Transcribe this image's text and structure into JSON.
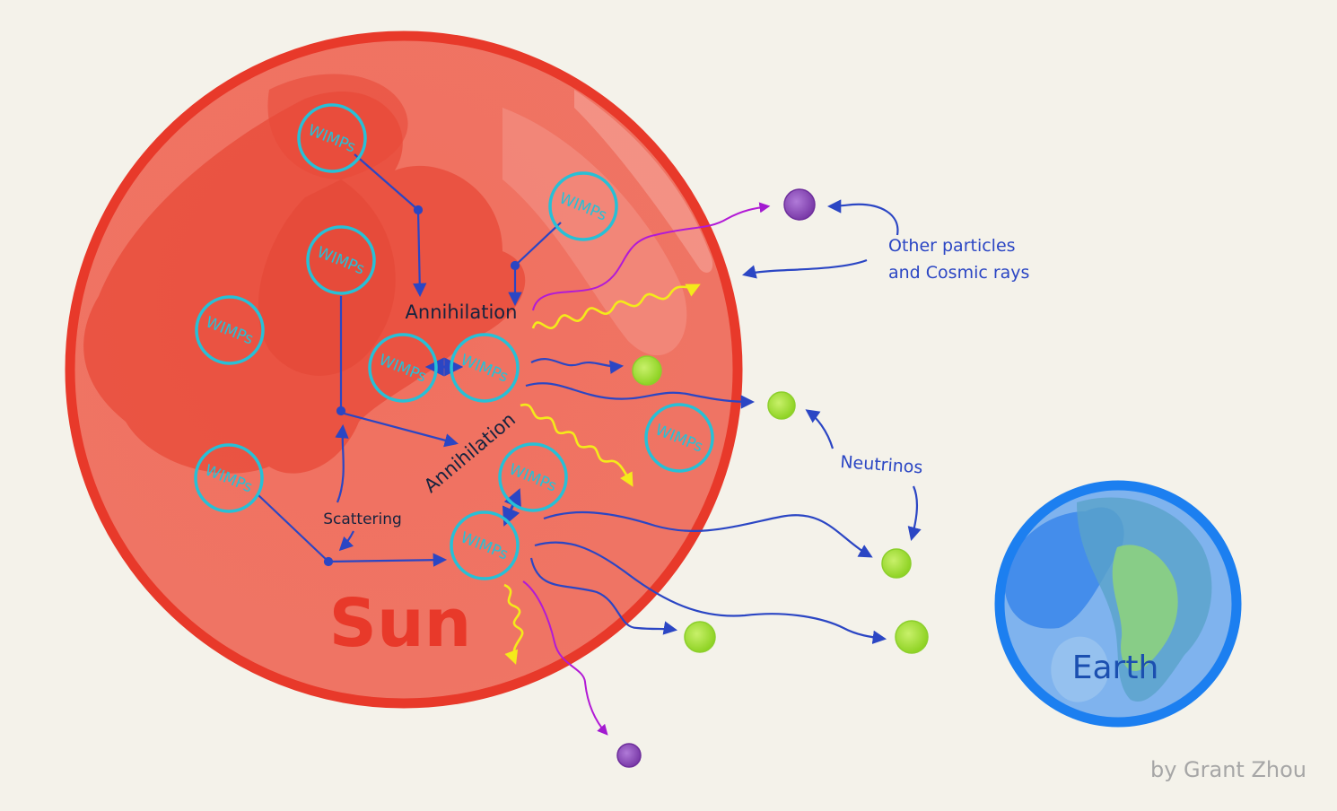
{
  "sun": {
    "label": "Sun"
  },
  "earth": {
    "label": "Earth"
  },
  "wimp_label": "WIMPs",
  "annotations": {
    "annihilation_upper": "Annihilation",
    "annihilation_lower": "Annihilation",
    "scattering": "Scattering",
    "other_particles_line1": "Other particles",
    "other_particles_line2": "and Cosmic rays",
    "neutrinos": "Neutrinos"
  },
  "credit": "by Grant Zhou",
  "colors": {
    "background": "#f4f2ea",
    "sun_fill": "#ee6e5e",
    "sun_rim": "#e8392a",
    "earth_rim": "#1c7ff0",
    "wimp_ring": "#27c0d6",
    "path": "#2b46c4",
    "gamma": "#f4ea1a",
    "neutrino": "#a8e33a",
    "cosmic": "#9a4fc4",
    "cosmic_path": "#b21ad6"
  }
}
